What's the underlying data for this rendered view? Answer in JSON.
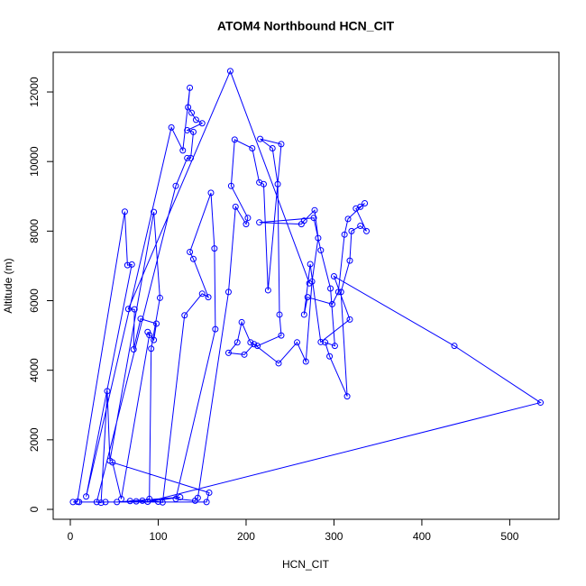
{
  "chart_data": {
    "type": "line",
    "title": "ATOM4 Northbound HCN_CIT",
    "x_label": "HCN_CIT",
    "y_label": "Altitude (m)",
    "color": "#0000ff",
    "markers": true,
    "x": [
      3,
      8,
      62,
      65,
      70,
      18,
      115,
      128,
      136,
      134,
      138,
      143,
      150,
      133,
      140,
      137,
      133,
      120,
      30,
      35,
      42,
      45,
      95,
      102,
      92,
      90,
      82,
      75,
      68,
      100,
      105,
      130,
      150,
      157,
      140,
      136,
      160,
      164,
      165,
      120,
      142,
      145,
      180,
      188,
      200,
      202,
      183,
      187,
      207,
      215,
      220,
      225,
      240,
      216,
      230,
      236,
      238,
      240,
      213,
      205,
      195,
      190,
      180,
      198,
      209,
      237,
      258,
      268,
      275,
      282,
      278,
      266,
      263,
      215,
      277,
      285,
      296,
      301,
      290,
      295,
      315,
      308,
      318,
      320,
      330,
      337,
      325,
      330,
      335,
      316,
      312,
      305,
      298,
      270,
      266,
      273,
      285,
      318,
      300,
      437,
      535,
      88,
      125,
      53,
      40,
      10,
      155,
      158,
      48,
      58,
      90,
      88,
      95,
      98,
      80,
      72,
      73,
      66,
      182,
      272
    ],
    "values": [
      210,
      220,
      8560,
      7020,
      7040,
      370,
      10980,
      10320,
      12120,
      11560,
      11400,
      11200,
      11100,
      10900,
      10850,
      10100,
      10100,
      9300,
      210,
      190,
      3400,
      1400,
      8550,
      6080,
      4620,
      300,
      250,
      230,
      240,
      220,
      200,
      5580,
      6200,
      6100,
      7200,
      7400,
      9100,
      7500,
      5180,
      300,
      250,
      330,
      6250,
      8700,
      8200,
      8380,
      9300,
      10630,
      10380,
      9400,
      9350,
      6300,
      10500,
      10650,
      10380,
      9350,
      5600,
      5000,
      4700,
      4800,
      5380,
      4800,
      4500,
      4450,
      4750,
      4200,
      4800,
      4250,
      6550,
      7800,
      8600,
      8300,
      8200,
      8250,
      8380,
      7450,
      6350,
      4700,
      4800,
      4400,
      3250,
      6250,
      7150,
      8000,
      8150,
      8000,
      8650,
      8700,
      8800,
      8350,
      7900,
      6250,
      5900,
      6100,
      5600,
      7050,
      4810,
      5460,
      6700,
      4700,
      3070,
      220,
      350,
      210,
      210,
      210,
      210,
      480,
      1350,
      300,
      5010,
      5100,
      4870,
      5340,
      5480,
      4600,
      5750,
      5760,
      12600,
      6500
    ],
    "xlim": [
      -19.5,
      556
    ],
    "ylim": [
      -285,
      13141
    ],
    "xticks": [
      0,
      100,
      200,
      300,
      400,
      500
    ],
    "yticks": [
      0,
      2000,
      4000,
      6000,
      8000,
      10000,
      12000
    ]
  }
}
